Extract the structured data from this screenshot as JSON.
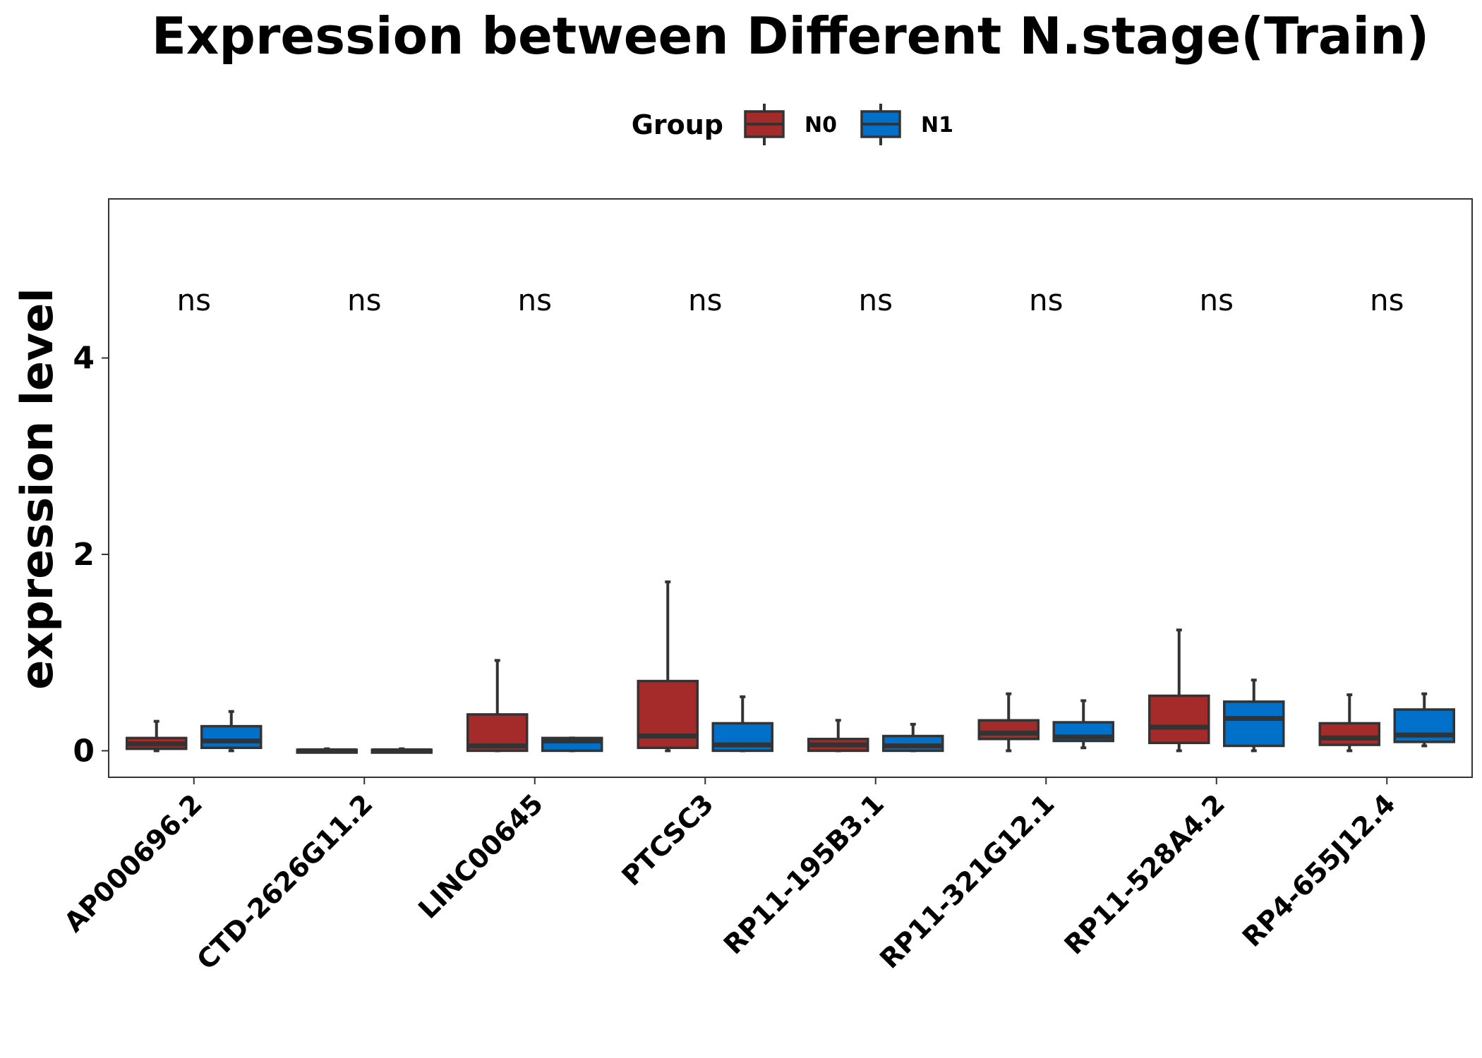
{
  "chart_data": {
    "type": "box",
    "title": "Expression between Different N.stage(Train)",
    "ylabel": "expression level",
    "xlabel": "",
    "ylim": [
      -0.27,
      5.62
    ],
    "yticks": [
      0,
      2,
      4
    ],
    "grid": false,
    "legend": {
      "title": "Group",
      "position": "top",
      "entries": [
        {
          "name": "N0",
          "color": "#A52A2A"
        },
        {
          "name": "N1",
          "color": "#0070C8"
        }
      ]
    },
    "categories": [
      "AP000696.2",
      "CTD-2626G11.2",
      "LINC00645",
      "PTCSC3",
      "RP11-195B3.1",
      "RP11-321G12.1",
      "RP11-528A4.2",
      "RP4-655J12.4"
    ],
    "significance": [
      "ns",
      "ns",
      "ns",
      "ns",
      "ns",
      "ns",
      "ns",
      "ns"
    ],
    "series": [
      {
        "name": "N0",
        "color": "#A52A2A",
        "boxes": [
          {
            "min": 0.0,
            "q1": 0.02,
            "median": 0.07,
            "q3": 0.13,
            "max": 0.3
          },
          {
            "min": 0.0,
            "q1": 0.0,
            "median": 0.0,
            "q3": 0.01,
            "max": 0.02
          },
          {
            "min": 0.0,
            "q1": 0.0,
            "median": 0.05,
            "q3": 0.37,
            "max": 0.92
          },
          {
            "min": 0.0,
            "q1": 0.03,
            "median": 0.15,
            "q3": 0.71,
            "max": 1.72
          },
          {
            "min": 0.0,
            "q1": 0.0,
            "median": 0.06,
            "q3": 0.12,
            "max": 0.31
          },
          {
            "min": 0.0,
            "q1": 0.12,
            "median": 0.18,
            "q3": 0.31,
            "max": 0.58
          },
          {
            "min": 0.0,
            "q1": 0.08,
            "median": 0.24,
            "q3": 0.56,
            "max": 1.23
          },
          {
            "min": 0.0,
            "q1": 0.06,
            "median": 0.13,
            "q3": 0.28,
            "max": 0.57
          }
        ]
      },
      {
        "name": "N1",
        "color": "#0070C8",
        "boxes": [
          {
            "min": 0.0,
            "q1": 0.03,
            "median": 0.1,
            "q3": 0.25,
            "max": 0.4
          },
          {
            "min": 0.0,
            "q1": 0.0,
            "median": 0.0,
            "q3": 0.01,
            "max": 0.02
          },
          {
            "min": 0.0,
            "q1": 0.0,
            "median": 0.1,
            "q3": 0.13,
            "max": 0.13
          },
          {
            "min": 0.0,
            "q1": 0.0,
            "median": 0.06,
            "q3": 0.28,
            "max": 0.55
          },
          {
            "min": 0.0,
            "q1": 0.0,
            "median": 0.05,
            "q3": 0.15,
            "max": 0.27
          },
          {
            "min": 0.03,
            "q1": 0.1,
            "median": 0.14,
            "q3": 0.29,
            "max": 0.51
          },
          {
            "min": 0.0,
            "q1": 0.05,
            "median": 0.33,
            "q3": 0.5,
            "max": 0.72
          },
          {
            "min": 0.05,
            "q1": 0.09,
            "median": 0.16,
            "q3": 0.42,
            "max": 0.58
          }
        ]
      }
    ]
  }
}
